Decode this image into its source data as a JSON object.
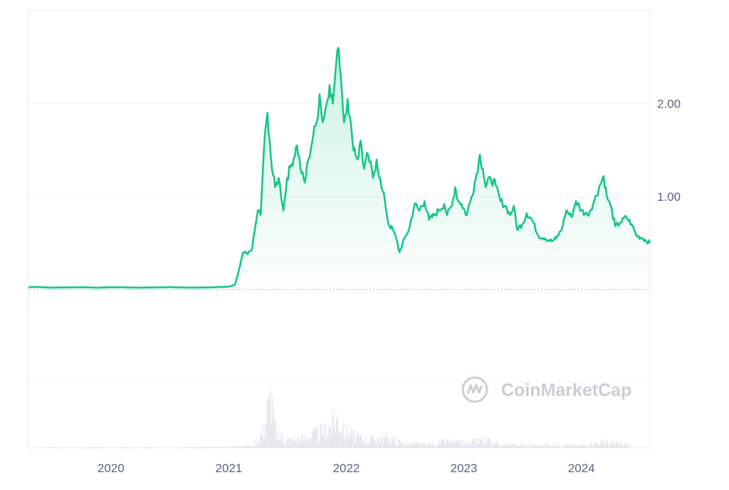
{
  "chart_data": {
    "type": "area",
    "title": "",
    "xlabel": "",
    "ylabel": "",
    "x_ticks": [
      "2020",
      "2021",
      "2022",
      "2023",
      "2024"
    ],
    "y_ticks": [
      {
        "value": 1.0,
        "label": "1.00"
      },
      {
        "value": 2.0,
        "label": "2.00"
      }
    ],
    "ylim": [
      -1.0,
      3.0
    ],
    "xlim": [
      "2019-04-20",
      "2024-08-01"
    ],
    "baseline": 0.0,
    "grid": true,
    "legend": "none",
    "line_color": "#16c784",
    "watermark": "CoinMarketCap",
    "series": [
      {
        "values": [
          [
            "2019-04-20",
            0.02
          ],
          [
            "2019-05-01",
            0.03
          ],
          [
            "2019-07-01",
            0.02
          ],
          [
            "2019-10-01",
            0.025
          ],
          [
            "2019-12-01",
            0.02
          ],
          [
            "2020-01-01",
            0.025
          ],
          [
            "2020-04-01",
            0.02
          ],
          [
            "2020-07-01",
            0.025
          ],
          [
            "2020-10-01",
            0.02
          ],
          [
            "2021-01-01",
            0.03
          ],
          [
            "2021-01-20",
            0.05
          ],
          [
            "2021-02-01",
            0.2
          ],
          [
            "2021-02-15",
            0.4
          ],
          [
            "2021-03-01",
            0.38
          ],
          [
            "2021-03-15",
            0.45
          ],
          [
            "2021-04-01",
            0.85
          ],
          [
            "2021-04-10",
            0.8
          ],
          [
            "2021-04-20",
            1.5
          ],
          [
            "2021-05-01",
            1.9
          ],
          [
            "2021-05-08",
            1.6
          ],
          [
            "2021-05-15",
            1.3
          ],
          [
            "2021-05-25",
            1.1
          ],
          [
            "2021-06-05",
            1.2
          ],
          [
            "2021-06-20",
            0.85
          ],
          [
            "2021-07-01",
            1.2
          ],
          [
            "2021-07-15",
            1.35
          ],
          [
            "2021-08-01",
            1.55
          ],
          [
            "2021-08-15",
            1.25
          ],
          [
            "2021-08-25",
            1.15
          ],
          [
            "2021-09-05",
            1.4
          ],
          [
            "2021-09-20",
            1.65
          ],
          [
            "2021-10-01",
            1.8
          ],
          [
            "2021-10-10",
            2.1
          ],
          [
            "2021-10-20",
            1.8
          ],
          [
            "2021-11-01",
            2.0
          ],
          [
            "2021-11-10",
            2.2
          ],
          [
            "2021-11-20",
            2.0
          ],
          [
            "2021-12-01",
            2.45
          ],
          [
            "2021-12-08",
            2.6
          ],
          [
            "2021-12-15",
            2.3
          ],
          [
            "2021-12-25",
            1.8
          ],
          [
            "2022-01-05",
            2.05
          ],
          [
            "2022-01-20",
            1.6
          ],
          [
            "2022-02-05",
            1.4
          ],
          [
            "2022-02-15",
            1.6
          ],
          [
            "2022-02-25",
            1.3
          ],
          [
            "2022-03-10",
            1.45
          ],
          [
            "2022-03-25",
            1.2
          ],
          [
            "2022-04-05",
            1.4
          ],
          [
            "2022-04-20",
            1.1
          ],
          [
            "2022-05-01",
            0.95
          ],
          [
            "2022-05-12",
            0.7
          ],
          [
            "2022-05-25",
            0.65
          ],
          [
            "2022-06-05",
            0.55
          ],
          [
            "2022-06-15",
            0.4
          ],
          [
            "2022-07-01",
            0.55
          ],
          [
            "2022-07-15",
            0.65
          ],
          [
            "2022-08-01",
            0.92
          ],
          [
            "2022-08-15",
            0.85
          ],
          [
            "2022-09-01",
            0.95
          ],
          [
            "2022-09-15",
            0.75
          ],
          [
            "2022-10-01",
            0.8
          ],
          [
            "2022-10-15",
            0.85
          ],
          [
            "2022-11-01",
            0.92
          ],
          [
            "2022-11-10",
            0.8
          ],
          [
            "2022-11-25",
            0.9
          ],
          [
            "2022-12-05",
            1.1
          ],
          [
            "2022-12-15",
            0.95
          ],
          [
            "2022-12-25",
            0.92
          ],
          [
            "2023-01-10",
            0.8
          ],
          [
            "2023-01-25",
            1.0
          ],
          [
            "2023-02-10",
            1.25
          ],
          [
            "2023-02-20",
            1.45
          ],
          [
            "2023-03-01",
            1.3
          ],
          [
            "2023-03-10",
            1.1
          ],
          [
            "2023-03-25",
            1.2
          ],
          [
            "2023-04-10",
            1.12
          ],
          [
            "2023-04-25",
            0.95
          ],
          [
            "2023-05-10",
            0.9
          ],
          [
            "2023-05-25",
            0.8
          ],
          [
            "2023-06-05",
            0.9
          ],
          [
            "2023-06-15",
            0.65
          ],
          [
            "2023-07-01",
            0.7
          ],
          [
            "2023-07-15",
            0.82
          ],
          [
            "2023-08-01",
            0.75
          ],
          [
            "2023-08-20",
            0.58
          ],
          [
            "2023-09-10",
            0.55
          ],
          [
            "2023-10-01",
            0.52
          ],
          [
            "2023-10-15",
            0.55
          ],
          [
            "2023-11-01",
            0.65
          ],
          [
            "2023-11-15",
            0.85
          ],
          [
            "2023-12-01",
            0.78
          ],
          [
            "2023-12-15",
            0.95
          ],
          [
            "2024-01-01",
            0.85
          ],
          [
            "2024-01-20",
            0.8
          ],
          [
            "2024-02-10",
            0.95
          ],
          [
            "2024-02-25",
            1.1
          ],
          [
            "2024-03-10",
            1.22
          ],
          [
            "2024-03-20",
            1.0
          ],
          [
            "2024-04-01",
            0.9
          ],
          [
            "2024-04-15",
            0.68
          ],
          [
            "2024-05-01",
            0.72
          ],
          [
            "2024-05-20",
            0.78
          ],
          [
            "2024-06-05",
            0.7
          ],
          [
            "2024-06-20",
            0.58
          ],
          [
            "2024-07-10",
            0.55
          ],
          [
            "2024-08-01",
            0.5
          ]
        ]
      }
    ],
    "volume": {
      "type": "bar",
      "values": [
        [
          "2019-06-01",
          0.01
        ],
        [
          "2020-01-01",
          0.01
        ],
        [
          "2020-08-01",
          0.01
        ],
        [
          "2021-01-01",
          0.02
        ],
        [
          "2021-02-15",
          0.06
        ],
        [
          "2021-03-15",
          0.05
        ],
        [
          "2021-04-15",
          0.3
        ],
        [
          "2021-05-01",
          0.75
        ],
        [
          "2021-05-10",
          0.95
        ],
        [
          "2021-05-20",
          0.5
        ],
        [
          "2021-06-01",
          0.25
        ],
        [
          "2021-07-01",
          0.15
        ],
        [
          "2021-08-15",
          0.18
        ],
        [
          "2021-09-15",
          0.25
        ],
        [
          "2021-10-15",
          0.3
        ],
        [
          "2021-11-15",
          0.45
        ],
        [
          "2021-12-05",
          0.6
        ],
        [
          "2021-12-20",
          0.35
        ],
        [
          "2022-01-15",
          0.25
        ],
        [
          "2022-03-01",
          0.15
        ],
        [
          "2022-05-10",
          0.2
        ],
        [
          "2022-07-01",
          0.08
        ],
        [
          "2022-09-01",
          0.07
        ],
        [
          "2022-11-10",
          0.12
        ],
        [
          "2023-01-15",
          0.08
        ],
        [
          "2023-02-20",
          0.18
        ],
        [
          "2023-05-01",
          0.06
        ],
        [
          "2023-08-01",
          0.05
        ],
        [
          "2023-11-15",
          0.06
        ],
        [
          "2024-01-01",
          0.05
        ],
        [
          "2024-03-10",
          0.12
        ],
        [
          "2024-06-01",
          0.05
        ]
      ]
    }
  }
}
